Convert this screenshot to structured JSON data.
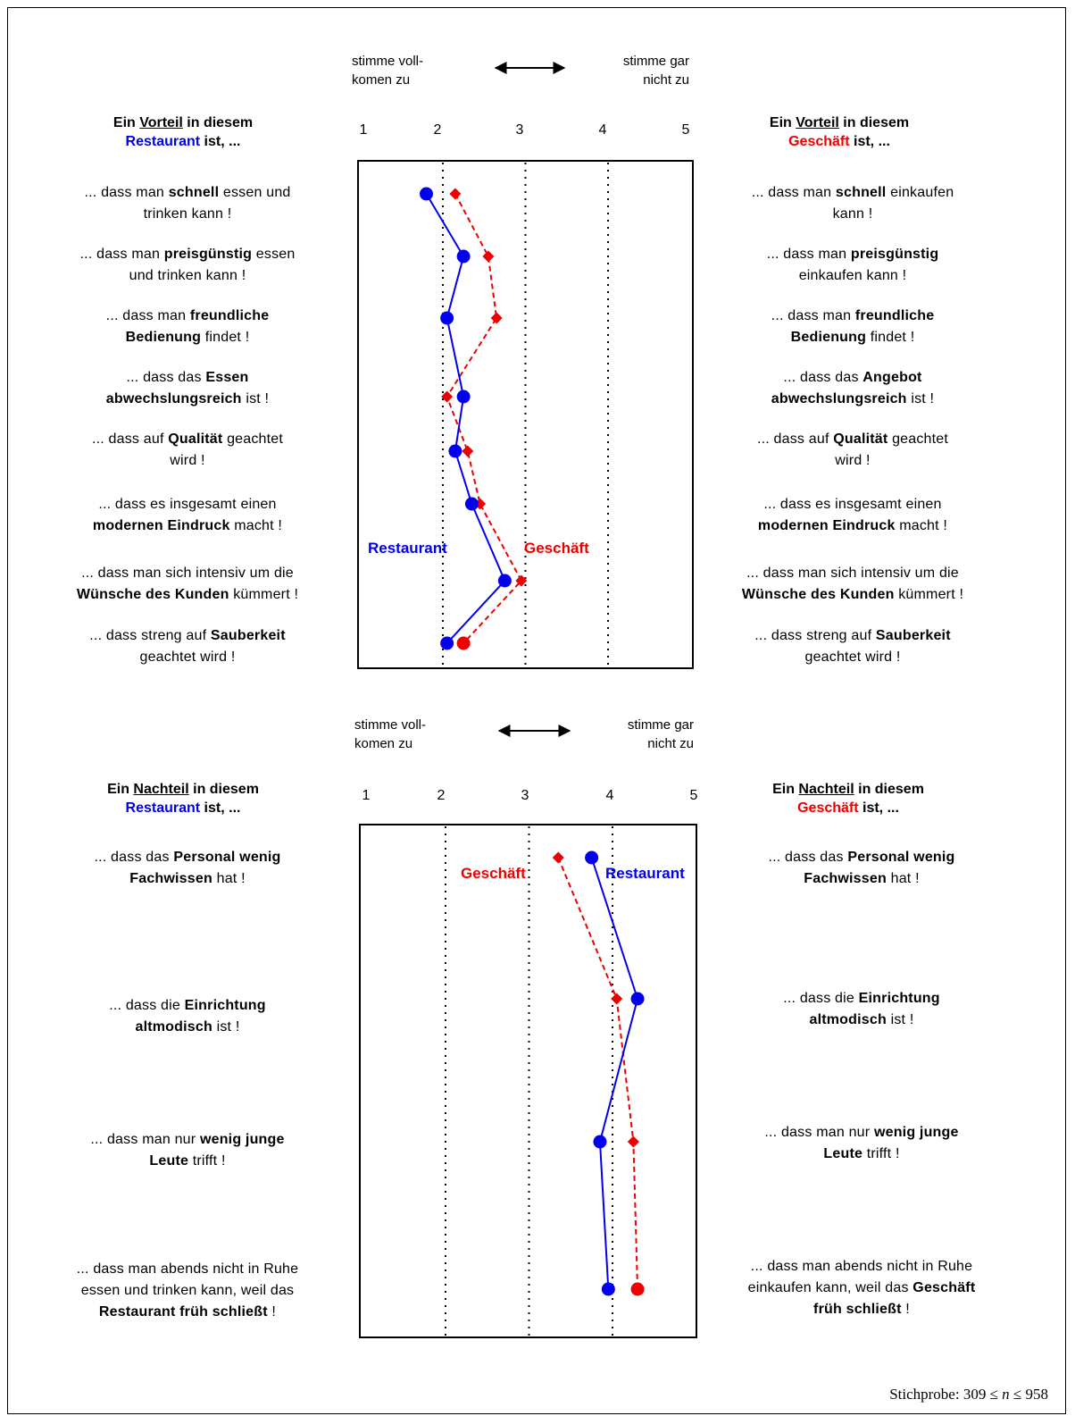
{
  "scale": {
    "left": [
      "stimme voll-",
      "komen zu"
    ],
    "left_lower": [
      "stimme voll-",
      "komen zu"
    ],
    "right": [
      "stimme gar",
      "nicht zu"
    ],
    "ticks": [
      "1",
      "2",
      "3",
      "4",
      "5"
    ]
  },
  "top": {
    "left_header": {
      "pre": "Ein ",
      "key": "Vorteil",
      "mid": " in diesem",
      "obj": "Restaurant",
      "post": " ist, ..."
    },
    "right_header": {
      "pre": "Ein ",
      "key": "Vorteil",
      "mid": " in diesem",
      "obj": "Geschäft",
      "post": " ist, ..."
    },
    "left_items": [
      [
        {
          "t": "... dass man "
        },
        {
          "t": "schnell",
          "b": true
        },
        {
          "t": " essen und"
        },
        {
          "br": true
        },
        {
          "t": "trinken kann !"
        }
      ],
      [
        {
          "t": "... dass man "
        },
        {
          "t": "preisgünstig",
          "b": true
        },
        {
          "t": " essen"
        },
        {
          "br": true
        },
        {
          "t": "und trinken kann !"
        }
      ],
      [
        {
          "t": "... dass man "
        },
        {
          "t": "freundliche",
          "b": true
        },
        {
          "br": true
        },
        {
          "t": "Bedienung",
          "b": true
        },
        {
          "t": " findet !"
        }
      ],
      [
        {
          "t": "... dass das "
        },
        {
          "t": "Essen",
          "b": true
        },
        {
          "br": true
        },
        {
          "t": "abwechslungsreich",
          "b": true
        },
        {
          "t": " ist !"
        }
      ],
      [
        {
          "t": "... dass auf "
        },
        {
          "t": "Qualität",
          "b": true
        },
        {
          "t": " geachtet"
        },
        {
          "br": true
        },
        {
          "t": "wird !"
        }
      ],
      [
        {
          "t": "... dass es insgesamt einen"
        },
        {
          "br": true
        },
        {
          "t": "modernen Eindruck",
          "b": true
        },
        {
          "t": " macht !"
        }
      ],
      [
        {
          "t": "... dass man sich intensiv um die"
        },
        {
          "br": true
        },
        {
          "t": "Wünsche des Kunden",
          "b": true
        },
        {
          "t": " kümmert !"
        }
      ],
      [
        {
          "t": "... dass streng auf "
        },
        {
          "t": "Sauberkeit",
          "b": true
        },
        {
          "br": true
        },
        {
          "t": "geachtet wird !"
        }
      ]
    ],
    "right_items": [
      [
        {
          "t": "... dass man "
        },
        {
          "t": "schnell",
          "b": true
        },
        {
          "t": " einkaufen"
        },
        {
          "br": true
        },
        {
          "t": "kann !"
        }
      ],
      [
        {
          "t": "... dass man "
        },
        {
          "t": "preisgünstig",
          "b": true
        },
        {
          "br": true
        },
        {
          "t": "einkaufen kann !"
        }
      ],
      [
        {
          "t": "... dass man "
        },
        {
          "t": "freundliche",
          "b": true
        },
        {
          "br": true
        },
        {
          "t": "Bedienung",
          "b": true
        },
        {
          "t": " findet !"
        }
      ],
      [
        {
          "t": "... dass das "
        },
        {
          "t": "Angebot",
          "b": true
        },
        {
          "br": true
        },
        {
          "t": "abwechslungsreich",
          "b": true
        },
        {
          "t": " ist !"
        }
      ],
      [
        {
          "t": "... dass auf "
        },
        {
          "t": "Qualität",
          "b": true
        },
        {
          "t": " geachtet"
        },
        {
          "br": true
        },
        {
          "t": "wird !"
        }
      ],
      [
        {
          "t": "... dass es insgesamt einen"
        },
        {
          "br": true
        },
        {
          "t": "modernen Eindruck",
          "b": true
        },
        {
          "t": " macht !"
        }
      ],
      [
        {
          "t": "... dass man sich intensiv um die"
        },
        {
          "br": true
        },
        {
          "t": "Wünsche des Kunden",
          "b": true
        },
        {
          "t": " kümmert !"
        }
      ],
      [
        {
          "t": "... dass streng auf "
        },
        {
          "t": "Sauberkeit",
          "b": true
        },
        {
          "br": true
        },
        {
          "t": "geachtet wird !"
        }
      ]
    ]
  },
  "bottom": {
    "left_header": {
      "pre": "Ein ",
      "key": "Nachteil",
      "mid": " in diesem",
      "obj": "Restaurant",
      "post": " ist, ..."
    },
    "right_header": {
      "pre": "Ein ",
      "key": "Nachteil",
      "mid": " in diesem",
      "obj": "Geschäft",
      "post": " ist, ..."
    },
    "left_items": [
      [
        {
          "t": "... dass das "
        },
        {
          "t": "Personal wenig",
          "b": true
        },
        {
          "br": true
        },
        {
          "t": "Fachwissen",
          "b": true
        },
        {
          "t": " hat !"
        }
      ],
      [
        {
          "t": "... dass die "
        },
        {
          "t": "Einrichtung",
          "b": true
        },
        {
          "br": true
        },
        {
          "t": "altmodisch",
          "b": true
        },
        {
          "t": " ist !"
        }
      ],
      [
        {
          "t": "... dass man nur "
        },
        {
          "t": "wenig junge",
          "b": true
        },
        {
          "br": true
        },
        {
          "t": "Leute",
          "b": true
        },
        {
          "t": " trifft !"
        }
      ],
      [
        {
          "t": "... dass man abends nicht in Ruhe"
        },
        {
          "br": true
        },
        {
          "t": "essen und trinken kann, weil das"
        },
        {
          "br": true
        },
        {
          "t": "Restaurant früh schließt",
          "b": true
        },
        {
          "t": " !"
        }
      ]
    ],
    "right_items": [
      [
        {
          "t": "... dass das "
        },
        {
          "t": "Personal wenig",
          "b": true
        },
        {
          "br": true
        },
        {
          "t": "Fachwissen",
          "b": true
        },
        {
          "t": " hat !"
        }
      ],
      [
        {
          "t": "... dass die "
        },
        {
          "t": "Einrichtung",
          "b": true
        },
        {
          "br": true
        },
        {
          "t": "altmodisch",
          "b": true
        },
        {
          "t": " ist !"
        }
      ],
      [
        {
          "t": "... dass man nur "
        },
        {
          "t": "wenig junge",
          "b": true
        },
        {
          "br": true
        },
        {
          "t": "Leute",
          "b": true
        },
        {
          "t": " trifft !"
        }
      ],
      [
        {
          "t": "... dass man abends nicht in Ruhe"
        },
        {
          "br": true
        },
        {
          "t": "einkaufen kann, weil das "
        },
        {
          "t": "Geschäft",
          "b": true
        },
        {
          "br": true
        },
        {
          "t": "früh schließt",
          "b": true
        },
        {
          "t": " !"
        }
      ]
    ]
  },
  "chart_data": [
    {
      "type": "line",
      "panel": "Vorteil",
      "xlim": [
        1,
        5
      ],
      "gridlines_x": [
        2,
        3,
        4
      ],
      "series": [
        {
          "name": "Restaurant",
          "color": "#0000ee",
          "style": "solid",
          "marker": "circle",
          "values": [
            1.8,
            2.25,
            2.05,
            2.25,
            2.15,
            2.35,
            2.75,
            2.05
          ]
        },
        {
          "name": "Geschäft",
          "color": "#ee0000",
          "style": "dashed",
          "marker": "diamond",
          "values": [
            2.15,
            2.55,
            2.65,
            2.05,
            2.3,
            2.45,
            2.95,
            2.25
          ]
        }
      ]
    },
    {
      "type": "line",
      "panel": "Nachteil",
      "xlim": [
        1,
        5
      ],
      "gridlines_x": [
        2,
        3,
        4
      ],
      "series": [
        {
          "name": "Restaurant",
          "color": "#0000ee",
          "style": "solid",
          "marker": "circle",
          "values": [
            3.75,
            4.3,
            3.85,
            3.95
          ]
        },
        {
          "name": "Geschäft",
          "color": "#ee0000",
          "style": "dashed",
          "marker": "diamond",
          "values": [
            3.35,
            4.05,
            4.25,
            4.3
          ]
        }
      ]
    }
  ],
  "footer": {
    "sample": "Stichprobe: 309 ≤ n ≤ 958"
  }
}
